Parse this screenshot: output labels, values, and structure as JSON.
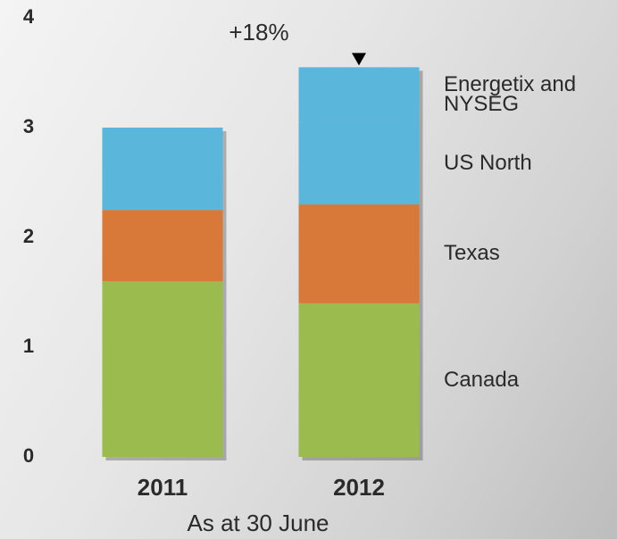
{
  "chart_data": {
    "type": "stacked_bar",
    "categories": [
      "2011",
      "2012"
    ],
    "series": [
      {
        "name": "Canada",
        "color": "#9bbb4f",
        "values": [
          1.6,
          1.4
        ]
      },
      {
        "name": "Texas",
        "color": "#d8793a",
        "values": [
          0.65,
          0.9
        ]
      },
      {
        "name": "US North",
        "color": "#5bb6dc",
        "values": [
          0.75,
          0.75
        ]
      },
      {
        "name": "Energetix and NYSEG",
        "color": "#5bb6dc",
        "values": [
          0,
          0.5
        ]
      }
    ],
    "ylim": [
      0,
      4
    ],
    "yticks": [
      0,
      1,
      2,
      3,
      4
    ],
    "grid": false,
    "annotation": "+18%",
    "x_label": "As at 30 June"
  }
}
